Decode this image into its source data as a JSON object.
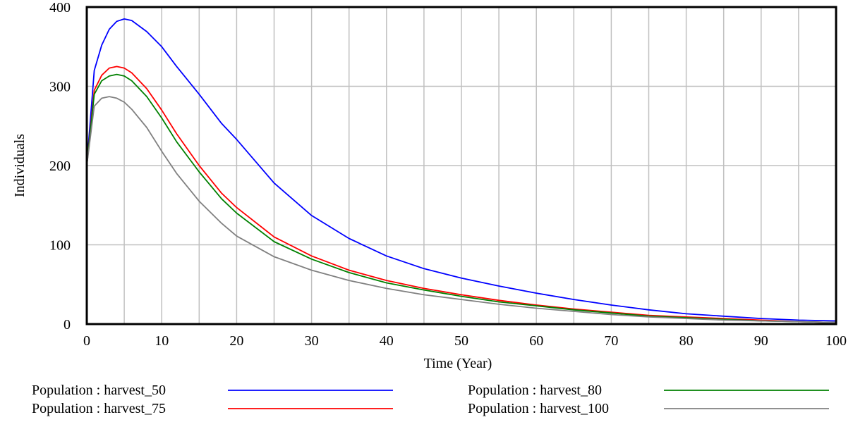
{
  "colors": {
    "background": "#ffffff",
    "grid": "#c0c0c0",
    "frame": "#000000"
  },
  "chart_data": {
    "type": "line",
    "title": "",
    "xlabel": "Time (Year)",
    "ylabel": "Individuals",
    "xlim": [
      0,
      100
    ],
    "ylim": [
      0,
      400
    ],
    "xticks": [
      0,
      10,
      20,
      30,
      40,
      50,
      60,
      70,
      80,
      90,
      100
    ],
    "yticks": [
      0,
      100,
      200,
      300,
      400
    ],
    "grid": true,
    "legend_position": "bottom",
    "x": [
      0,
      1,
      2,
      3,
      4,
      5,
      6,
      8,
      10,
      12,
      15,
      18,
      20,
      25,
      30,
      35,
      40,
      45,
      50,
      55,
      60,
      65,
      70,
      75,
      80,
      85,
      90,
      95,
      100
    ],
    "series": [
      {
        "name": "Population : harvest_50",
        "color": "#0000ff",
        "values": [
          200,
          320,
          352,
          372,
          382,
          385,
          383,
          369,
          350,
          325,
          290,
          253,
          233,
          178,
          137,
          108,
          86,
          70,
          58,
          48,
          39,
          31,
          24,
          18,
          13,
          10,
          7,
          5,
          4
        ]
      },
      {
        "name": "Population : harvest_75",
        "color": "#ff0000",
        "values": [
          200,
          295,
          314,
          323,
          325,
          323,
          317,
          297,
          270,
          240,
          200,
          165,
          147,
          110,
          86,
          68,
          55,
          45,
          37,
          30,
          24,
          19,
          15,
          11,
          9,
          7,
          5,
          3,
          2
        ]
      },
      {
        "name": "Population : harvest_80",
        "color": "#008000",
        "values": [
          200,
          290,
          307,
          313,
          315,
          313,
          307,
          287,
          260,
          230,
          192,
          158,
          140,
          104,
          82,
          65,
          52,
          43,
          35,
          28,
          23,
          18,
          14,
          10,
          8,
          6,
          4,
          3,
          2
        ]
      },
      {
        "name": "Population : harvest_100",
        "color": "#808080",
        "values": [
          200,
          275,
          285,
          287,
          285,
          280,
          271,
          248,
          218,
          190,
          155,
          127,
          111,
          85,
          68,
          55,
          45,
          37,
          31,
          25,
          20,
          16,
          12,
          9,
          7,
          5,
          4,
          3,
          2
        ]
      }
    ]
  }
}
